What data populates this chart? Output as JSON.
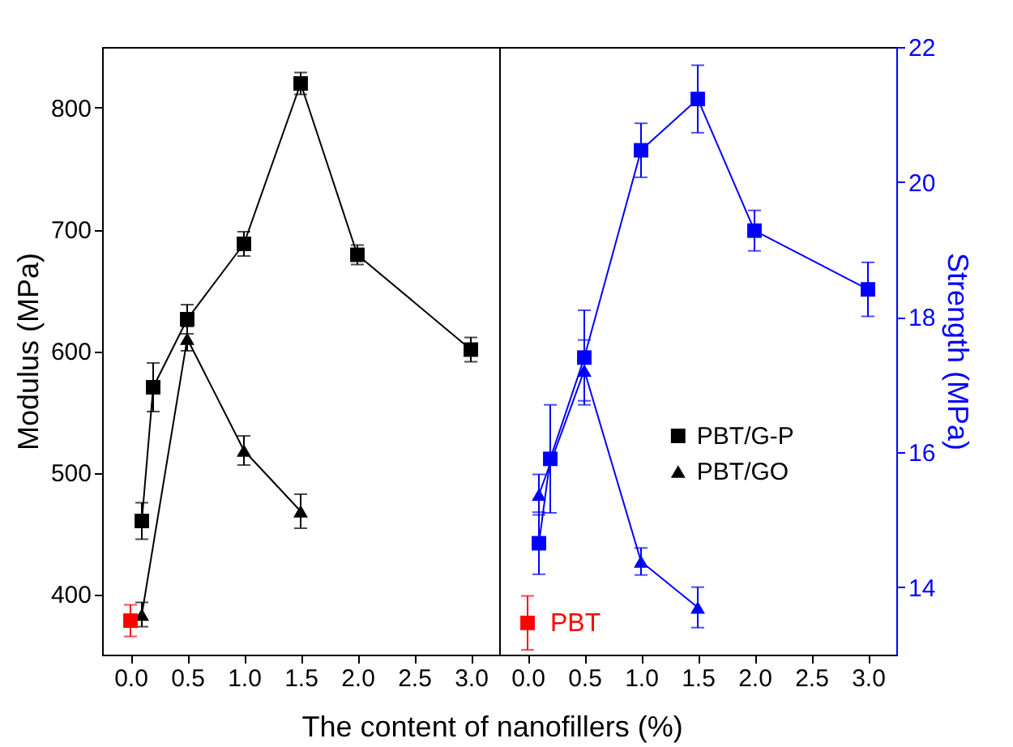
{
  "chart_data": [
    {
      "type": "line",
      "xlabel": "The content of nanofillers (%)",
      "ylabel": "Modulus (MPa)",
      "xlim": [
        -0.25,
        3.25
      ],
      "xticks": [
        {
          "value": 0,
          "label": "0.0"
        },
        {
          "value": 0.5,
          "label": "0.5"
        },
        {
          "value": 1,
          "label": "1.0"
        },
        {
          "value": 1.5,
          "label": "1.5"
        },
        {
          "value": 2,
          "label": "2.0"
        },
        {
          "value": 2.5,
          "label": "2.5"
        },
        {
          "value": 3,
          "label": "3.0"
        }
      ],
      "ylim": [
        350,
        850
      ],
      "yticks": [
        400,
        500,
        600,
        700,
        800
      ],
      "legend": "right",
      "series": [
        {
          "name": "PBT/G-P",
          "type": "line",
          "marker": "square",
          "color": "#000000",
          "x": [
            0.1,
            0.2,
            0.5,
            1.0,
            1.5,
            2.0,
            3.0
          ],
          "values": [
            460,
            570,
            626,
            688,
            820,
            679,
            601
          ],
          "errors": [
            15,
            20,
            12,
            10,
            9,
            8,
            10
          ]
        },
        {
          "name": "PBT/GO",
          "type": "line",
          "marker": "triangle",
          "color": "#000000",
          "x": [
            0.1,
            0.5,
            1.0,
            1.5
          ],
          "values": [
            383,
            610,
            518,
            468
          ],
          "errors": [
            10,
            10,
            12,
            14
          ]
        },
        {
          "type": "scatter",
          "marker": "square",
          "color": "#ff0000",
          "x": [
            0
          ],
          "values": [
            378
          ],
          "errors": [
            13
          ]
        }
      ]
    },
    {
      "type": "line",
      "y2label": "Strength (MPa)",
      "xlim": [
        -0.25,
        3.25
      ],
      "xticks": [
        {
          "value": 0,
          "label": "0.0"
        },
        {
          "value": 0.5,
          "label": "0.5"
        },
        {
          "value": 1,
          "label": "1.0"
        },
        {
          "value": 1.5,
          "label": "1.5"
        },
        {
          "value": 2,
          "label": "2.0"
        },
        {
          "value": 2.5,
          "label": "2.5"
        },
        {
          "value": 3,
          "label": "3.0"
        }
      ],
      "y2lim": [
        13,
        22
      ],
      "y2ticks": [
        14,
        16,
        18,
        20,
        22
      ],
      "series": [
        {
          "type": "line",
          "axis": "y2",
          "marker": "square",
          "color": "#0000ff",
          "x": [
            0.1,
            0.2,
            0.5,
            1.0,
            1.5,
            2.0,
            3.0
          ],
          "values": [
            14.65,
            15.9,
            17.4,
            20.47,
            21.23,
            19.28,
            18.41
          ],
          "errors": [
            0.46,
            0.8,
            0.7,
            0.4,
            0.5,
            0.3,
            0.4
          ]
        },
        {
          "type": "line",
          "axis": "y2",
          "marker": "triangle",
          "color": "#0000ff",
          "x": [
            0.1,
            0.5,
            1.0,
            1.5
          ],
          "values": [
            15.37,
            17.21,
            14.38,
            13.7
          ],
          "errors": [
            0.3,
            0.45,
            0.2,
            0.3
          ]
        },
        {
          "name": "PBT",
          "type": "scatter",
          "axis": "y2",
          "marker": "square",
          "color": "#ff0000",
          "x": [
            0
          ],
          "values": [
            13.47
          ],
          "errors": [
            0.4
          ]
        }
      ]
    }
  ]
}
